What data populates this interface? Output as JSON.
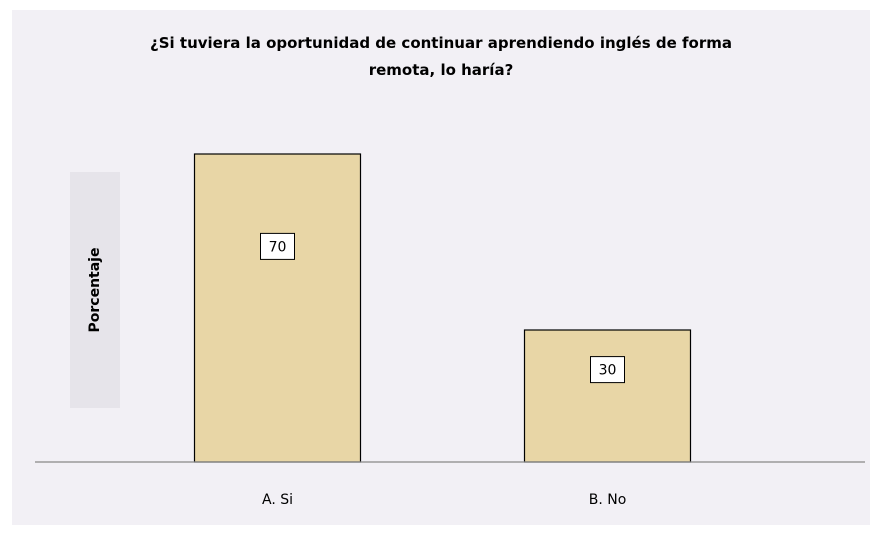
{
  "chart_data": {
    "type": "bar",
    "title": "¿Si tuviera la oportunidad de continuar aprendiendo inglés de forma remota, lo haría?",
    "y_label": "Porcentaje",
    "categories": [
      "A. Si",
      "B. No"
    ],
    "values": [
      70,
      30
    ],
    "color": "#e8d6a6",
    "ylim": [
      0,
      100
    ]
  }
}
